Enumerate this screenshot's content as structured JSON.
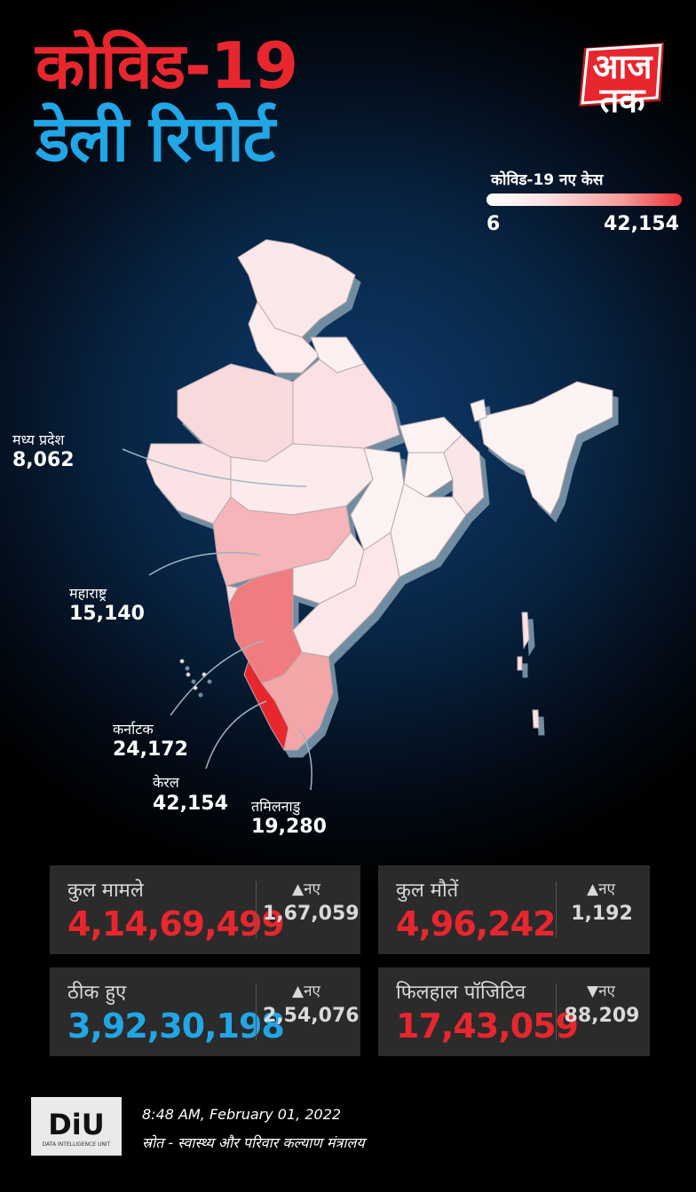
{
  "header": {
    "title_line1": "कोविड-19",
    "title_line2": "डेली रिपोर्ट",
    "logo_text": "आज तक"
  },
  "legend": {
    "title": "कोविड-19 नए केस",
    "min": "6",
    "max": "42,154",
    "color_low": "#ffffff",
    "color_high": "#ec3136"
  },
  "map_labels": [
    {
      "state": "मध्य प्रदेश",
      "cases": "8,062"
    },
    {
      "state": "महाराष्ट्र",
      "cases": "15,140"
    },
    {
      "state": "कर्नाटक",
      "cases": "24,172"
    },
    {
      "state": "केरल",
      "cases": "42,154"
    },
    {
      "state": "तमिलनाडु",
      "cases": "19,280"
    }
  ],
  "stats": {
    "total_cases": {
      "label": "कुल मामले",
      "value": "4,14,69,499",
      "new_label": "▲नए",
      "new_value": "1,67,059",
      "color": "#e8262e"
    },
    "total_deaths": {
      "label": "कुल मौतें",
      "value": "4,96,242",
      "new_label": "▲नए",
      "new_value": "1,192",
      "color": "#e8262e"
    },
    "recovered": {
      "label": "ठीक हुए",
      "value": "3,92,30,198",
      "new_label": "▲नए",
      "new_value": "2,54,076",
      "color": "#21a6e6"
    },
    "active": {
      "label": "फिलहाल पॉजिटिव",
      "value": "17,43,059",
      "new_label": "▼नए",
      "new_value": "88,209",
      "color": "#e8262e"
    }
  },
  "footer": {
    "brand": "DiU",
    "brand_sub": "DATA INTELLIGENCE UNIT",
    "timestamp": "8:48 AM, February 01, 2022",
    "source": "स्रोत - स्वास्थ्य और परिवार कल्याण मंत्रालय"
  },
  "colors": {
    "accent_red": "#e8262e",
    "accent_blue": "#21a6e6",
    "card_bg": "#2b2b2b"
  }
}
